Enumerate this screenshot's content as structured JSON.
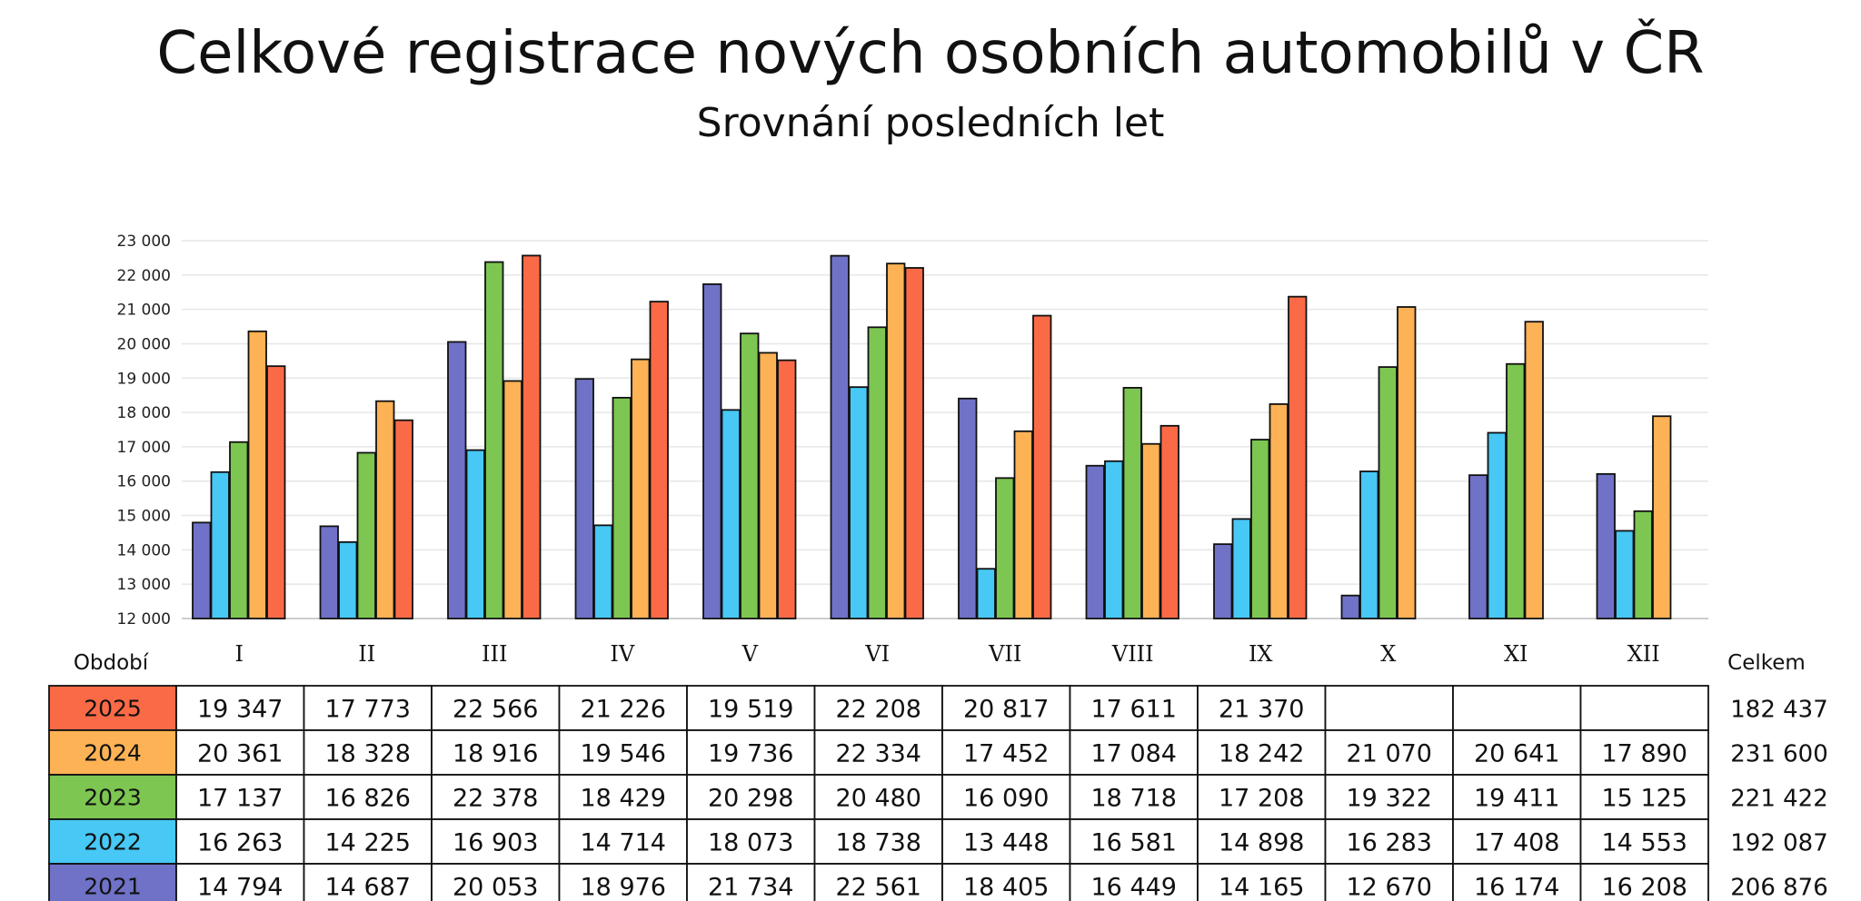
{
  "chart_data": {
    "type": "bar",
    "title": "Celkové registrace nových osobních automobilů v ČR",
    "subtitle": "Srovnání posledních let",
    "categories": [
      "I",
      "II",
      "III",
      "IV",
      "V",
      "VI",
      "VII",
      "VIII",
      "IX",
      "X",
      "XI",
      "XII"
    ],
    "y_ticks": [
      "12 000",
      "13 000",
      "14 000",
      "15 000",
      "16 000",
      "17 000",
      "18 000",
      "19 000",
      "20 000",
      "21 000",
      "22 000",
      "23 000"
    ],
    "ylim": [
      12000,
      23000
    ],
    "grid": true,
    "series": [
      {
        "name": "2021",
        "color": "#6f72c6",
        "values": [
          14794,
          14687,
          20053,
          18976,
          21734,
          22561,
          18405,
          16449,
          14165,
          12670,
          16174,
          16208
        ],
        "labels": [
          "14 794",
          "14 687",
          "20 053",
          "18 976",
          "21 734",
          "22 561",
          "18 405",
          "16 449",
          "14 165",
          "12 670",
          "16 174",
          "16 208"
        ],
        "total": "206 876"
      },
      {
        "name": "2022",
        "color": "#47c8f5",
        "values": [
          16263,
          14225,
          16903,
          14714,
          18073,
          18738,
          13448,
          16581,
          14898,
          16283,
          17408,
          14553
        ],
        "labels": [
          "16 263",
          "14 225",
          "16 903",
          "14 714",
          "18 073",
          "18 738",
          "13 448",
          "16 581",
          "14 898",
          "16 283",
          "17 408",
          "14 553"
        ],
        "total": "192 087"
      },
      {
        "name": "2023",
        "color": "#7cc651",
        "values": [
          17137,
          16826,
          22378,
          18429,
          20298,
          20480,
          16090,
          18718,
          17208,
          19322,
          19411,
          15125
        ],
        "labels": [
          "17 137",
          "16 826",
          "22 378",
          "18 429",
          "20 298",
          "20 480",
          "16 090",
          "18 718",
          "17 208",
          "19 322",
          "19 411",
          "15 125"
        ],
        "total": "221 422"
      },
      {
        "name": "2024",
        "color": "#fdb255",
        "values": [
          20361,
          18328,
          18916,
          19546,
          19736,
          22334,
          17452,
          17084,
          18242,
          21070,
          20641,
          17890
        ],
        "labels": [
          "20 361",
          "18 328",
          "18 916",
          "19 546",
          "19 736",
          "22 334",
          "17 452",
          "17 084",
          "18 242",
          "21 070",
          "20 641",
          "17 890"
        ],
        "total": "231 600"
      },
      {
        "name": "2025",
        "color": "#fb6a47",
        "values": [
          19347,
          17773,
          22566,
          21226,
          19519,
          22208,
          20817,
          17611,
          21370,
          null,
          null,
          null
        ],
        "labels": [
          "19 347",
          "17 773",
          "22 566",
          "21 226",
          "19 519",
          "22 208",
          "20 817",
          "17 611",
          "21 370",
          "",
          "",
          ""
        ],
        "total": "182 437"
      }
    ],
    "table": {
      "period_label": "Období",
      "total_label": "Celkem",
      "row_order": [
        "2025",
        "2024",
        "2023",
        "2022",
        "2021"
      ]
    }
  }
}
